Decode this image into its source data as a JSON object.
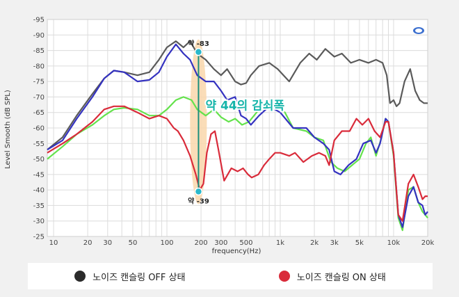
{
  "chart_data": {
    "type": "line",
    "xlabel": "frequency(Hz)",
    "ylabel": "Level Smooth (dB SPL)",
    "x_scale": "log",
    "xlim": [
      8.8,
      20000
    ],
    "ylim": [
      -25,
      -95
    ],
    "y_ticks": [
      -95,
      -90,
      -85,
      -80,
      -75,
      -70,
      -65,
      -60,
      -55,
      -50,
      -45,
      -40,
      -35,
      -30,
      -25
    ],
    "x_ticks": [
      {
        "value": 10,
        "label": "10"
      },
      {
        "value": 20,
        "label": "20"
      },
      {
        "value": 30,
        "label": "30"
      },
      {
        "value": 50,
        "label": "50"
      },
      {
        "value": 100,
        "label": "100"
      },
      {
        "value": 200,
        "label": "200"
      },
      {
        "value": 300,
        "label": "300"
      },
      {
        "value": 500,
        "label": "500"
      },
      {
        "value": 1000,
        "label": "1k"
      },
      {
        "value": 2000,
        "label": "2k"
      },
      {
        "value": 3000,
        "label": "3k"
      },
      {
        "value": 5000,
        "label": "5k"
      },
      {
        "value": 10000,
        "label": "10k"
      },
      {
        "value": 20000,
        "label": "20k"
      }
    ],
    "grid": true,
    "series": [
      {
        "name": "노이즈 캔슬링 OFF 상태",
        "color": "#5a5a5a",
        "points": [
          [
            8.8,
            -53
          ],
          [
            12,
            -57
          ],
          [
            16,
            -64
          ],
          [
            22,
            -71
          ],
          [
            28,
            -76
          ],
          [
            34,
            -78.5
          ],
          [
            42,
            -78
          ],
          [
            55,
            -77
          ],
          [
            70,
            -78
          ],
          [
            85,
            -82
          ],
          [
            100,
            -86
          ],
          [
            120,
            -88
          ],
          [
            140,
            -86
          ],
          [
            160,
            -88
          ],
          [
            185,
            -84
          ],
          [
            220,
            -82
          ],
          [
            260,
            -79
          ],
          [
            300,
            -77
          ],
          [
            340,
            -79
          ],
          [
            400,
            -75
          ],
          [
            450,
            -74
          ],
          [
            500,
            -74.5
          ],
          [
            550,
            -77
          ],
          [
            650,
            -80
          ],
          [
            800,
            -81
          ],
          [
            950,
            -79
          ],
          [
            1200,
            -75
          ],
          [
            1500,
            -81
          ],
          [
            1800,
            -84
          ],
          [
            2100,
            -82
          ],
          [
            2500,
            -85.5
          ],
          [
            3000,
            -83
          ],
          [
            3500,
            -84
          ],
          [
            4200,
            -81
          ],
          [
            5000,
            -82
          ],
          [
            6000,
            -81
          ],
          [
            7000,
            -82
          ],
          [
            8000,
            -81
          ],
          [
            8700,
            -77
          ],
          [
            9300,
            -68
          ],
          [
            10000,
            -69
          ],
          [
            10600,
            -67
          ],
          [
            11300,
            -68
          ],
          [
            12500,
            -75
          ],
          [
            14000,
            -79
          ],
          [
            15500,
            -72
          ],
          [
            17000,
            -69
          ],
          [
            18500,
            -68
          ],
          [
            20000,
            -68
          ]
        ]
      },
      {
        "name": "blue",
        "color": "#3432c0",
        "points": [
          [
            8.8,
            -53
          ],
          [
            12,
            -56
          ],
          [
            16,
            -63
          ],
          [
            22,
            -70
          ],
          [
            28,
            -76
          ],
          [
            34,
            -78.5
          ],
          [
            42,
            -78
          ],
          [
            55,
            -75
          ],
          [
            70,
            -75.5
          ],
          [
            85,
            -78
          ],
          [
            100,
            -83
          ],
          [
            120,
            -87
          ],
          [
            140,
            -84
          ],
          [
            160,
            -82
          ],
          [
            185,
            -77
          ],
          [
            220,
            -75
          ],
          [
            260,
            -75
          ],
          [
            300,
            -72
          ],
          [
            340,
            -69
          ],
          [
            400,
            -70
          ],
          [
            450,
            -64
          ],
          [
            500,
            -63
          ],
          [
            550,
            -61
          ],
          [
            650,
            -64
          ],
          [
            800,
            -67
          ],
          [
            1000,
            -65
          ],
          [
            1300,
            -60
          ],
          [
            1700,
            -60
          ],
          [
            2000,
            -57
          ],
          [
            2400,
            -55
          ],
          [
            2700,
            -53
          ],
          [
            3000,
            -46
          ],
          [
            3400,
            -45
          ],
          [
            4000,
            -48
          ],
          [
            4700,
            -50
          ],
          [
            5400,
            -55
          ],
          [
            6300,
            -56
          ],
          [
            7000,
            -52
          ],
          [
            7600,
            -55
          ],
          [
            8500,
            -63
          ],
          [
            9000,
            -62
          ],
          [
            10000,
            -52
          ],
          [
            11000,
            -32
          ],
          [
            12000,
            -28
          ],
          [
            13500,
            -38
          ],
          [
            15000,
            -41
          ],
          [
            16500,
            -36
          ],
          [
            18000,
            -35
          ],
          [
            19000,
            -32
          ],
          [
            20000,
            -33
          ]
        ]
      },
      {
        "name": "green",
        "color": "#64e24c",
        "points": [
          [
            8.8,
            -50
          ],
          [
            12,
            -54
          ],
          [
            16,
            -58
          ],
          [
            22,
            -61
          ],
          [
            28,
            -64
          ],
          [
            34,
            -66
          ],
          [
            42,
            -66.5
          ],
          [
            55,
            -66
          ],
          [
            70,
            -64
          ],
          [
            85,
            -64
          ],
          [
            100,
            -66
          ],
          [
            120,
            -69
          ],
          [
            140,
            -70
          ],
          [
            165,
            -69
          ],
          [
            185,
            -66
          ],
          [
            220,
            -64
          ],
          [
            260,
            -66
          ],
          [
            300,
            -63.5
          ],
          [
            350,
            -62
          ],
          [
            400,
            -63
          ],
          [
            460,
            -61
          ],
          [
            530,
            -62
          ],
          [
            650,
            -66
          ],
          [
            800,
            -68
          ],
          [
            950,
            -67
          ],
          [
            1100,
            -65
          ],
          [
            1300,
            -60
          ],
          [
            1700,
            -59
          ],
          [
            2000,
            -57
          ],
          [
            2400,
            -56
          ],
          [
            2800,
            -49
          ],
          [
            3200,
            -47
          ],
          [
            3700,
            -46
          ],
          [
            4300,
            -48
          ],
          [
            5000,
            -50
          ],
          [
            5700,
            -55
          ],
          [
            6300,
            -57
          ],
          [
            7000,
            -51
          ],
          [
            7700,
            -56
          ],
          [
            8500,
            -63
          ],
          [
            9000,
            -62
          ],
          [
            10000,
            -51
          ],
          [
            11000,
            -31
          ],
          [
            12000,
            -27
          ],
          [
            13500,
            -40
          ],
          [
            15000,
            -41
          ],
          [
            16500,
            -36
          ],
          [
            18000,
            -33
          ],
          [
            19000,
            -32
          ],
          [
            20000,
            -31
          ]
        ]
      },
      {
        "name": "노이즈 캔슬링 ON 상태",
        "color": "#d92b3a",
        "points": [
          [
            8.8,
            -52
          ],
          [
            12,
            -55
          ],
          [
            16,
            -58
          ],
          [
            22,
            -62
          ],
          [
            28,
            -66
          ],
          [
            34,
            -67
          ],
          [
            42,
            -67
          ],
          [
            55,
            -65
          ],
          [
            70,
            -63
          ],
          [
            85,
            -64
          ],
          [
            100,
            -63
          ],
          [
            115,
            -60
          ],
          [
            125,
            -59
          ],
          [
            140,
            -56
          ],
          [
            160,
            -51
          ],
          [
            180,
            -45
          ],
          [
            195,
            -40
          ],
          [
            210,
            -42
          ],
          [
            225,
            -52
          ],
          [
            245,
            -58
          ],
          [
            265,
            -59
          ],
          [
            285,
            -53
          ],
          [
            320,
            -43
          ],
          [
            370,
            -47
          ],
          [
            420,
            -46
          ],
          [
            470,
            -47
          ],
          [
            520,
            -45
          ],
          [
            560,
            -44
          ],
          [
            640,
            -45
          ],
          [
            720,
            -48
          ],
          [
            800,
            -50
          ],
          [
            900,
            -52
          ],
          [
            1000,
            -52
          ],
          [
            1200,
            -51
          ],
          [
            1350,
            -52
          ],
          [
            1600,
            -49
          ],
          [
            1900,
            -51
          ],
          [
            2200,
            -52
          ],
          [
            2500,
            -51
          ],
          [
            2700,
            -48
          ],
          [
            3000,
            -56
          ],
          [
            3500,
            -59
          ],
          [
            4100,
            -59
          ],
          [
            4700,
            -63
          ],
          [
            5300,
            -61
          ],
          [
            6000,
            -63
          ],
          [
            6800,
            -59
          ],
          [
            7600,
            -57
          ],
          [
            8500,
            -62
          ],
          [
            9000,
            -62
          ],
          [
            10000,
            -52
          ],
          [
            11000,
            -32
          ],
          [
            12000,
            -30
          ],
          [
            13500,
            -42
          ],
          [
            15000,
            -45
          ],
          [
            16500,
            -41
          ],
          [
            18000,
            -37
          ],
          [
            19000,
            -38
          ],
          [
            20000,
            -38
          ]
        ]
      }
    ],
    "annotations": {
      "top_label": "약 -83",
      "bottom_label": "약 -39",
      "marker_freq": 190,
      "marker_top": -84.5,
      "marker_bottom": -39.5,
      "highlight_range": [
        160,
        225
      ],
      "callout": "약 44의 감쇠폭"
    },
    "colors": {
      "marker": "#1d8f7c",
      "marker_dot": "#2ab8cb",
      "highlight": "#f9d7ac",
      "callout_text": "#17b5aa",
      "legend_off_dot": "#2b2b2b",
      "legend_on_dot": "#d92b3a"
    }
  },
  "legend": {
    "off_label": "노이즈 캔슬링 OFF 상태",
    "on_label": "노이즈 캔슬링 ON 상태"
  }
}
